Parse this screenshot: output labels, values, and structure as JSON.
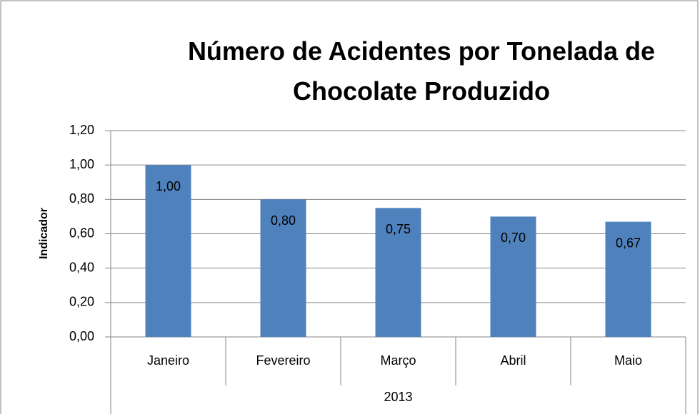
{
  "chart_data": {
    "type": "bar",
    "title": "Número de Acidentes por Tonelada de Chocolate Produzido",
    "ylabel": "Indicador",
    "categories": [
      "Janeiro",
      "Fevereiro",
      "Março",
      "Abril",
      "Maio"
    ],
    "category_group": "2013",
    "values": [
      1.0,
      0.8,
      0.75,
      0.7,
      0.67
    ],
    "value_labels": [
      "1,00",
      "0,80",
      "0,75",
      "0,70",
      "0,67"
    ],
    "color": "#4f81bd",
    "ylim": [
      0,
      1.2
    ],
    "yticks": [
      {
        "value": 0,
        "label": "0,00"
      },
      {
        "value": 0.2,
        "label": "0,20"
      },
      {
        "value": 0.4,
        "label": "0,40"
      },
      {
        "value": 0.6,
        "label": "0,60"
      },
      {
        "value": 0.8,
        "label": "0,80"
      },
      {
        "value": 1.0,
        "label": "1,00"
      },
      {
        "value": 1.2,
        "label": "1,20"
      }
    ],
    "grid": true
  }
}
